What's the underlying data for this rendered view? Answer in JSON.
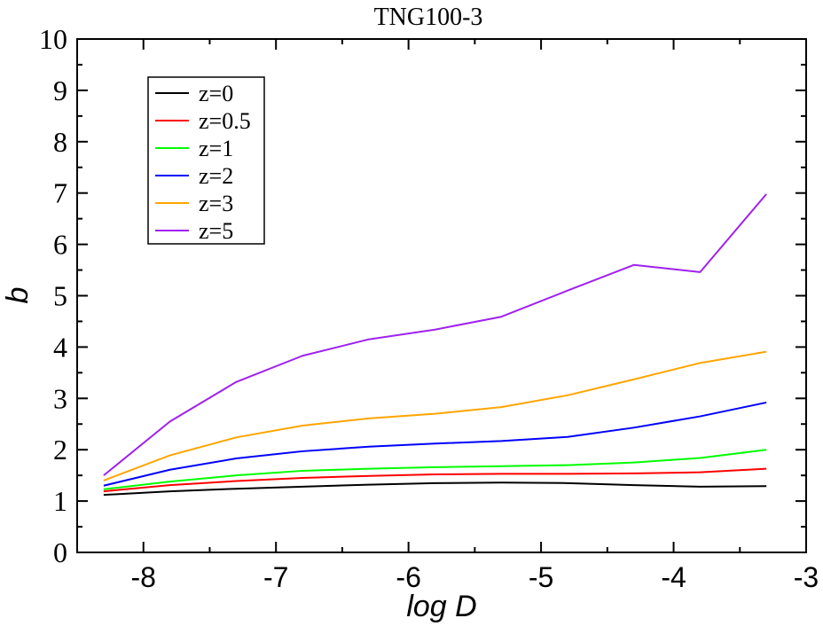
{
  "chart_data": {
    "type": "line",
    "title": "TNG100-3",
    "xlabel": "log D",
    "ylabel": "b",
    "xlim": [
      -8.5,
      -3
    ],
    "ylim": [
      0,
      10
    ],
    "x_ticks": [
      -8,
      -7,
      -6,
      -5,
      -4,
      -3
    ],
    "x_tick_labels": [
      "-8",
      "-7",
      "-6",
      "-5",
      "-4",
      "-3"
    ],
    "y_ticks": [
      0,
      1,
      2,
      3,
      4,
      5,
      6,
      7,
      8,
      9,
      10
    ],
    "y_tick_labels": [
      "0",
      "1",
      "2",
      "3",
      "4",
      "5",
      "6",
      "7",
      "8",
      "9",
      "10"
    ],
    "legend_position": "top-left",
    "grid": false,
    "x": [
      -8.3,
      -7.8,
      -7.3,
      -6.8,
      -6.3,
      -5.8,
      -5.3,
      -4.8,
      -4.3,
      -3.8,
      -3.3
    ],
    "series": [
      {
        "name": "z=0",
        "color": "#000000",
        "values": [
          1.12,
          1.19,
          1.24,
          1.28,
          1.32,
          1.35,
          1.36,
          1.35,
          1.31,
          1.28,
          1.29
        ]
      },
      {
        "name": "z=0.5",
        "color": "#ff0000",
        "values": [
          1.19,
          1.31,
          1.39,
          1.45,
          1.49,
          1.52,
          1.53,
          1.53,
          1.54,
          1.56,
          1.63
        ]
      },
      {
        "name": "z=1",
        "color": "#00ff00",
        "values": [
          1.23,
          1.38,
          1.5,
          1.59,
          1.63,
          1.66,
          1.68,
          1.7,
          1.75,
          1.84,
          2.0
        ]
      },
      {
        "name": "z=2",
        "color": "#0000ff",
        "values": [
          1.3,
          1.61,
          1.83,
          1.97,
          2.06,
          2.12,
          2.17,
          2.25,
          2.43,
          2.65,
          2.92
        ]
      },
      {
        "name": "z=3",
        "color": "#ffa500",
        "values": [
          1.4,
          1.89,
          2.24,
          2.47,
          2.61,
          2.7,
          2.83,
          3.06,
          3.37,
          3.69,
          3.91
        ]
      },
      {
        "name": "z=5",
        "color": "#a020f0",
        "values": [
          1.5,
          2.55,
          3.32,
          3.83,
          4.15,
          4.34,
          4.59,
          5.1,
          5.6,
          5.46,
          6.98
        ]
      }
    ]
  }
}
